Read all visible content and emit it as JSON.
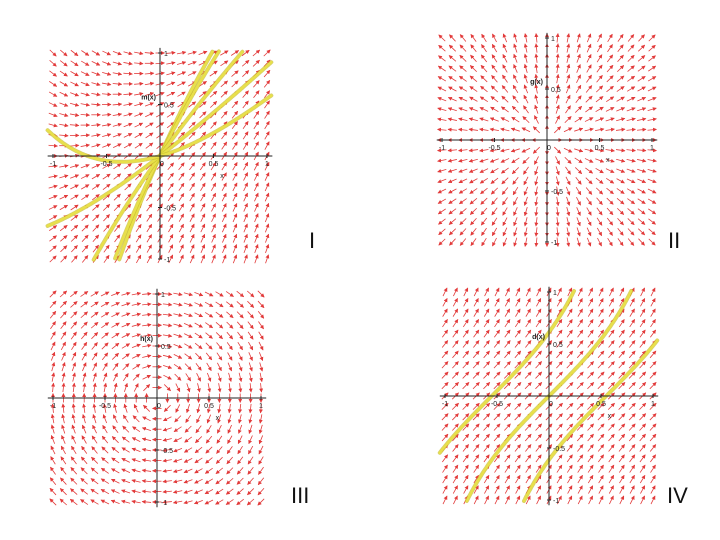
{
  "colors": {
    "arrow": "#e23a3a",
    "curve": "#e8e04a",
    "curve_edge": "#c8bd2a",
    "axis": "#222222",
    "background": "#ffffff"
  },
  "panels": [
    {
      "id": "I",
      "roman": "I",
      "ylabel": "m(x)",
      "xlabel": "x",
      "field": "dy/dx = 1 + x - y",
      "xticks": [
        "-1",
        "-0.5",
        "0",
        "0.5",
        "1"
      ],
      "yticks": [
        "-1",
        "-0.5",
        "0.5",
        "1"
      ],
      "solutions": [
        {
          "c": 1.35
        },
        {
          "c": 1.1
        },
        {
          "c": 0.45
        },
        {
          "c": -0.2
        },
        {
          "c": -0.7
        }
      ]
    },
    {
      "id": "II",
      "roman": "II",
      "ylabel": "g(x)",
      "xlabel": "x",
      "field": "dy/dx = y / x",
      "xticks": [
        "-1",
        "-0.5",
        "0",
        "0.5",
        "1"
      ],
      "yticks": [
        "-1",
        "-0.5",
        "0.5",
        "1"
      ],
      "solutions": []
    },
    {
      "id": "III",
      "roman": "III",
      "ylabel": "h(x)",
      "xlabel": "x",
      "field": "dy/dx = -x / y",
      "xticks": [
        "-1",
        "-0.5",
        "0",
        "0.5",
        "1"
      ],
      "yticks": [
        "-1",
        "-0.5",
        "0.5",
        "1"
      ],
      "solutions": []
    },
    {
      "id": "IV",
      "roman": "IV",
      "ylabel": "d(x)",
      "xlabel": "x",
      "field": "dy/dx = 1 + y^2",
      "xticks": [
        "-1",
        "-0.5",
        "0",
        "0.5",
        "1"
      ],
      "yticks": [
        "-1",
        "-0.5",
        "0.5",
        "1"
      ],
      "solutions": [
        {
          "c": 0.55
        },
        {
          "c": 0.0
        },
        {
          "c": -0.55
        }
      ]
    }
  ]
}
